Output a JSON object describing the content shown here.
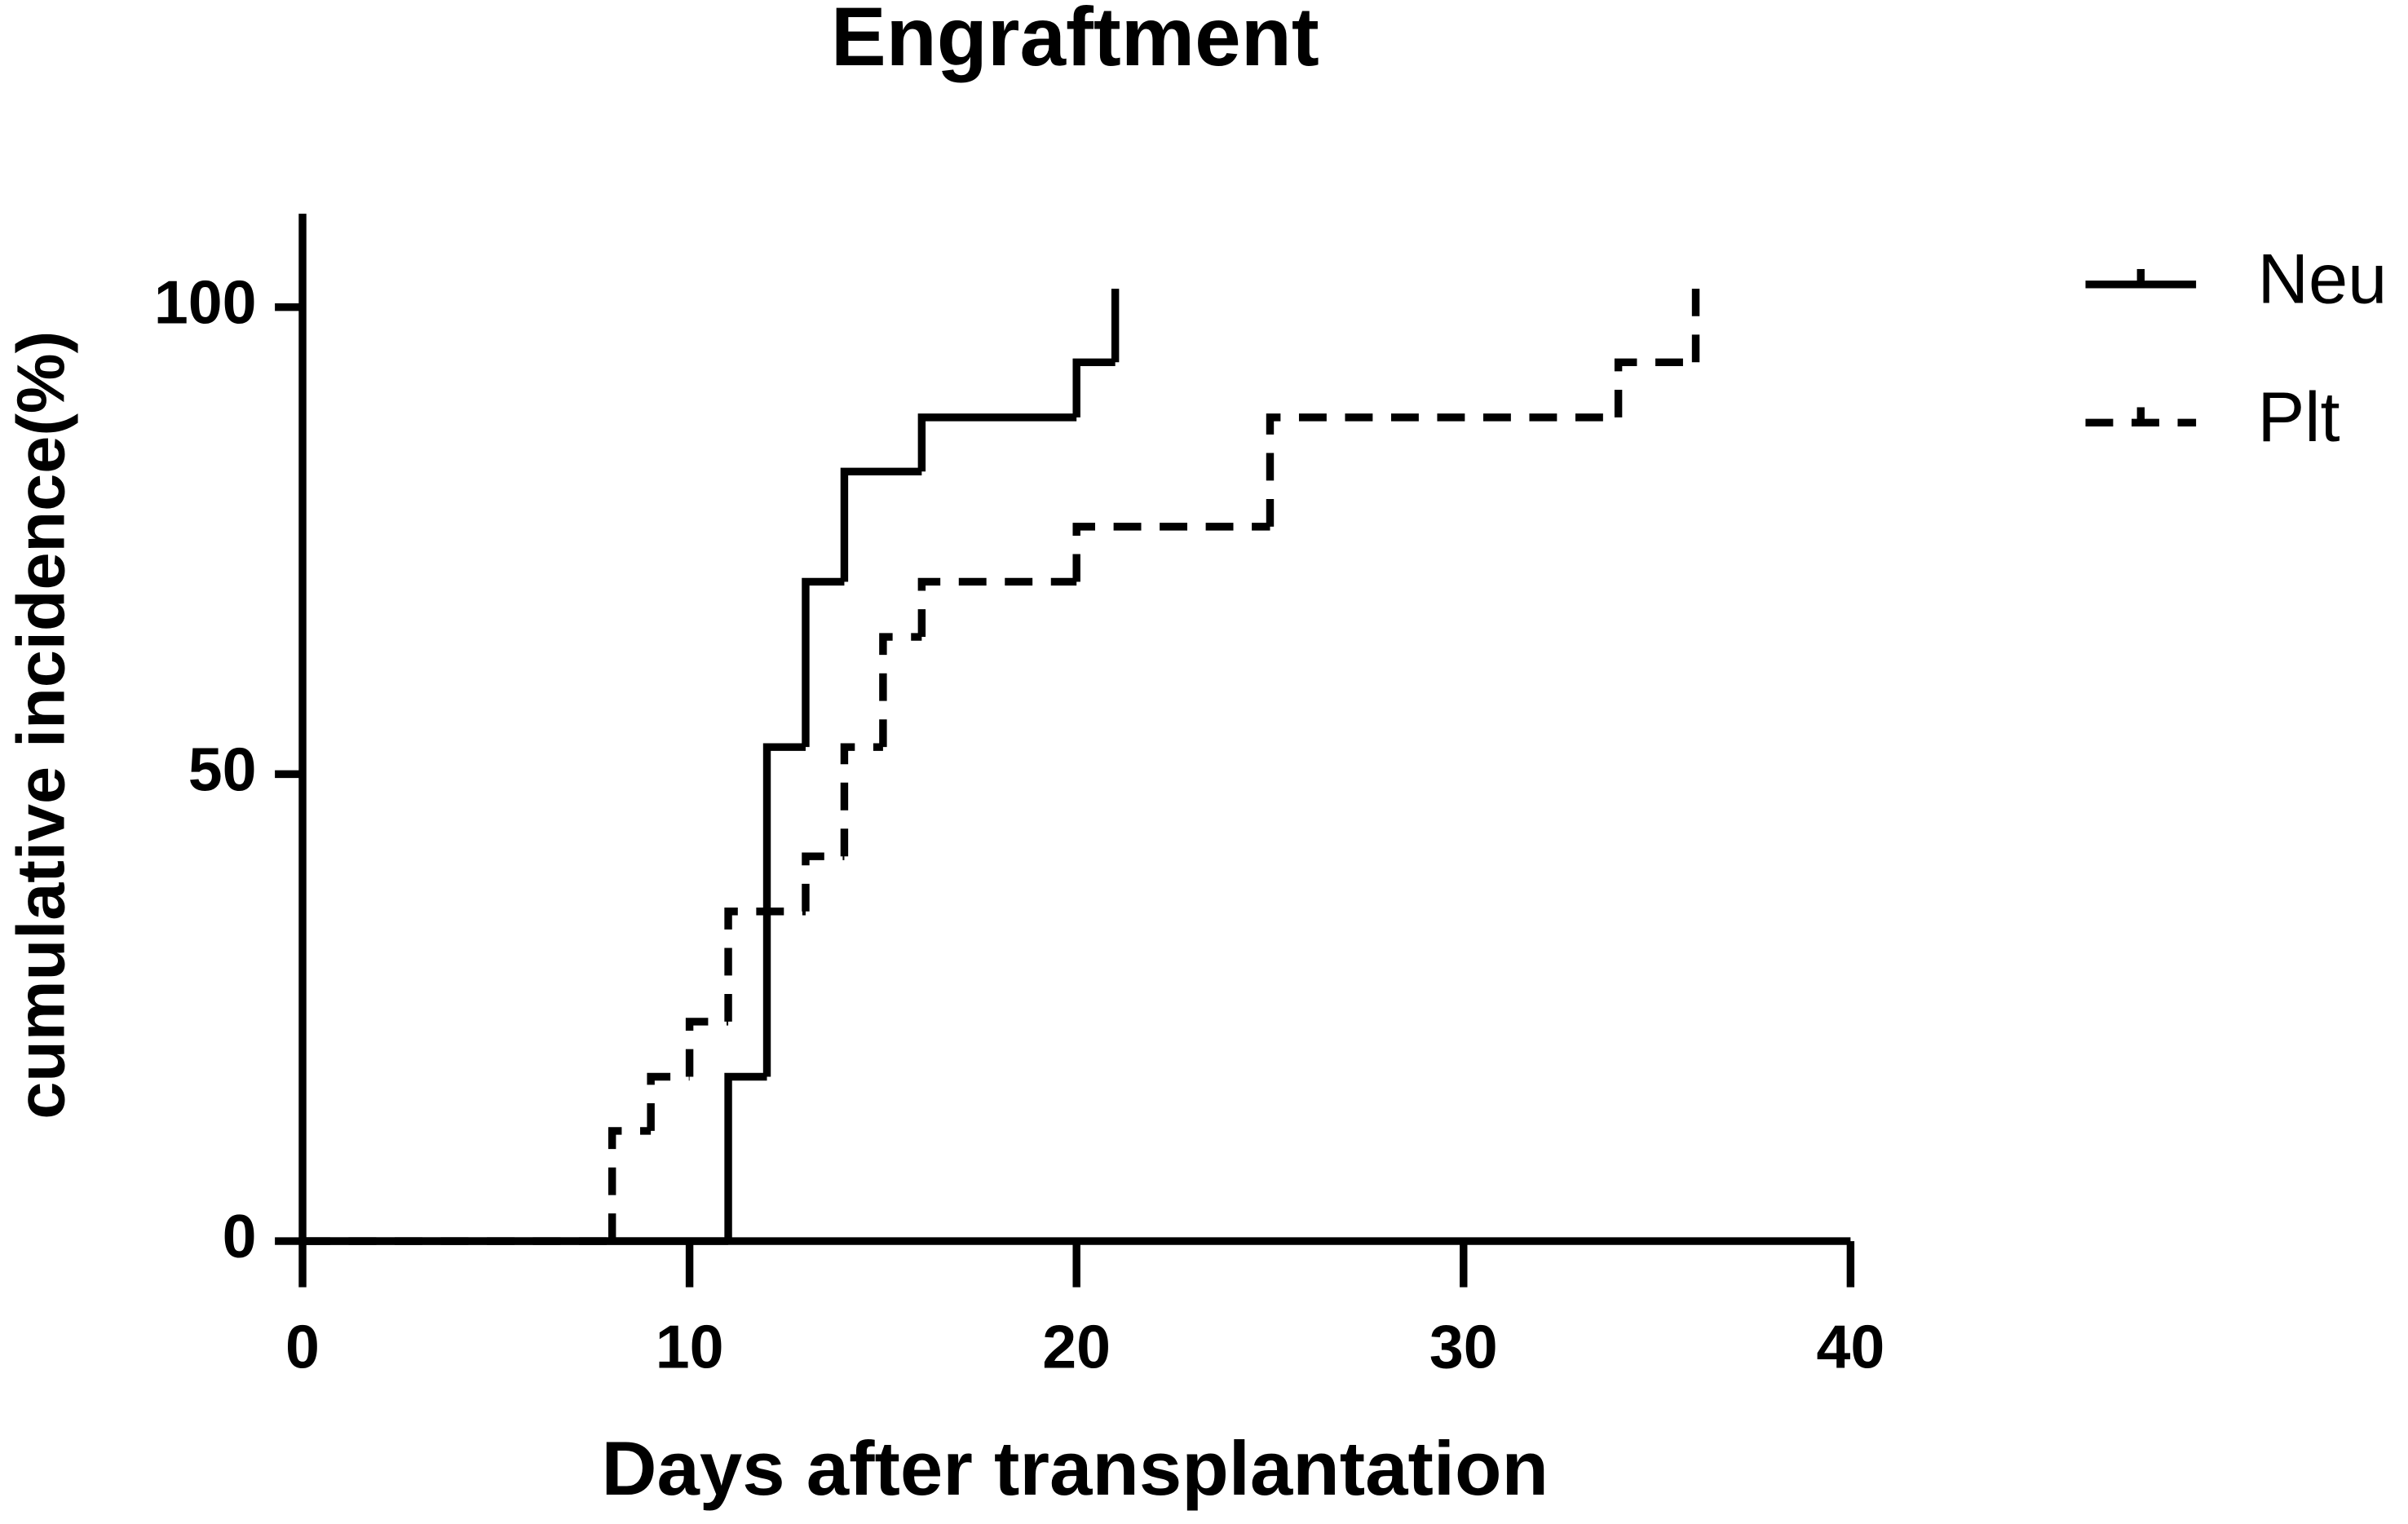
{
  "chart_data": {
    "type": "step",
    "title": "Engraftment",
    "x_label": "Days after transplantation",
    "y_label": "cumulative incidence(%)",
    "xlim": [
      0,
      40
    ],
    "xticks": [
      0,
      10,
      20,
      30,
      40
    ],
    "ylim": [
      0,
      110
    ],
    "yticks": [
      0,
      50,
      100
    ],
    "series": [
      {
        "name": "Neu",
        "color": "#000000",
        "dash": false,
        "x": [
          0,
          11,
          12,
          13,
          14,
          16,
          20,
          21
        ],
        "values": [
          0,
          17.6,
          52.9,
          70.6,
          82.4,
          88.2,
          94.1,
          100
        ]
      },
      {
        "name": "Plt",
        "color": "#000000",
        "dash": true,
        "x": [
          0,
          8,
          9,
          10,
          11,
          13,
          14,
          15,
          16,
          20,
          25,
          34,
          36
        ],
        "values": [
          0,
          11.8,
          17.6,
          23.5,
          35.3,
          41.2,
          52.9,
          64.7,
          70.6,
          76.5,
          88.2,
          94.1,
          100
        ]
      }
    ]
  }
}
